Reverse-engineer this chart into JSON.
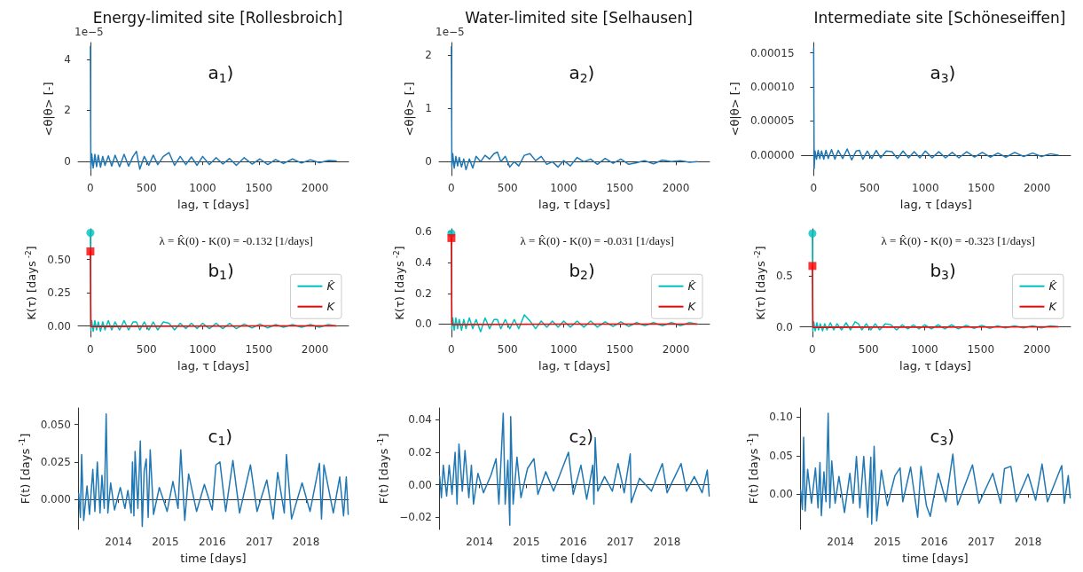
{
  "chart_data": [
    {
      "type": "line",
      "title": "Energy-limited site [Rollesbroich]",
      "xlabel": "lag, τ [days]",
      "ylabel": "<θ|θ> [-]",
      "annotations": [
        "a$_{1}$)",
        "1e−5"
      ],
      "marker": "none",
      "x": [
        0,
        4,
        12,
        25,
        40,
        55,
        70,
        90,
        110,
        130,
        160,
        190,
        220,
        260,
        300,
        340,
        380,
        410,
        440,
        480,
        520,
        560,
        600,
        650,
        700,
        750,
        800,
        850,
        900,
        950,
        1000,
        1060,
        1120,
        1180,
        1240,
        1300,
        1370,
        1440,
        1510,
        1580,
        1650,
        1720,
        1800,
        1880,
        1960,
        2040,
        2120,
        2190
      ],
      "series": [
        {
          "color": "#1f77b4",
          "values": [
            4.5,
            -0.3,
            0.3,
            -0.25,
            0.28,
            -0.2,
            0.25,
            -0.22,
            0.2,
            -0.15,
            0.22,
            -0.18,
            0.25,
            -0.2,
            0.28,
            -0.18,
            0.2,
            0.4,
            -0.3,
            0.2,
            -0.15,
            0.25,
            -0.12,
            0.2,
            0.35,
            -0.15,
            0.2,
            -0.12,
            0.18,
            -0.15,
            0.2,
            -0.12,
            0.15,
            -0.1,
            0.12,
            -0.15,
            0.15,
            -0.1,
            0.1,
            -0.12,
            0.08,
            -0.08,
            0.1,
            -0.06,
            0.07,
            -0.05,
            0.04,
            0.02
          ]
        }
      ],
      "xlim": [
        -110,
        2300
      ],
      "xticks": [
        0,
        500,
        1000,
        1500,
        2000
      ],
      "ylim": [
        -0.55,
        4.65
      ],
      "yticks": [
        0,
        2,
        4
      ]
    },
    {
      "type": "line",
      "title": "Water-limited site [Selhausen]",
      "xlabel": "lag, τ [days]",
      "ylabel": "<θ|θ> [-]",
      "annotations": [
        "a$_{2}$)",
        "1e−5"
      ],
      "marker": "none",
      "x": [
        0,
        4,
        12,
        25,
        40,
        55,
        70,
        90,
        110,
        130,
        160,
        190,
        220,
        260,
        300,
        340,
        380,
        410,
        440,
        480,
        520,
        560,
        600,
        650,
        700,
        750,
        800,
        850,
        900,
        950,
        1000,
        1060,
        1120,
        1180,
        1240,
        1300,
        1370,
        1440,
        1510,
        1580,
        1650,
        1720,
        1800,
        1880,
        1960,
        2040,
        2120,
        2190
      ],
      "series": [
        {
          "color": "#1f77b4",
          "values": [
            2.15,
            -0.1,
            0.15,
            -0.12,
            0.1,
            -0.08,
            0.08,
            -0.1,
            0.05,
            -0.15,
            0.05,
            -0.12,
            0.1,
            0.0,
            0.12,
            0.05,
            0.15,
            0.18,
            0.0,
            0.1,
            -0.1,
            0.0,
            -0.08,
            0.12,
            0.15,
            0.02,
            0.1,
            -0.05,
            0.0,
            -0.1,
            0.02,
            -0.08,
            0.08,
            0.0,
            0.05,
            -0.05,
            0.06,
            -0.03,
            0.05,
            -0.05,
            -0.02,
            0.02,
            -0.04,
            0.03,
            0.0,
            0.02,
            -0.01,
            0.0
          ]
        }
      ],
      "xlim": [
        -110,
        2300
      ],
      "xticks": [
        0,
        500,
        1000,
        1500,
        2000
      ],
      "ylim": [
        -0.26,
        2.23
      ],
      "yticks": [
        0,
        1,
        2
      ]
    },
    {
      "type": "line",
      "title": "Intermediate site [Schöneseiffen]",
      "xlabel": "lag, τ [days]",
      "ylabel": "<θ|θ> [-]",
      "annotations": [
        "a$_{3}$)"
      ],
      "marker": "none",
      "x": [
        0,
        4,
        12,
        25,
        40,
        55,
        70,
        90,
        110,
        130,
        160,
        190,
        220,
        260,
        300,
        340,
        380,
        410,
        440,
        480,
        520,
        560,
        600,
        650,
        700,
        750,
        800,
        850,
        900,
        950,
        1000,
        1060,
        1120,
        1180,
        1240,
        1300,
        1370,
        1440,
        1510,
        1580,
        1650,
        1720,
        1800,
        1880,
        1960,
        2040,
        2120,
        2190
      ],
      "series": [
        {
          "color": "#1f77b4",
          "values": [
            0.000157,
            -2e-05,
            6e-06,
            -6e-06,
            7e-06,
            -5e-06,
            6e-06,
            -6e-06,
            7e-06,
            -5e-06,
            8e-06,
            -6e-06,
            7e-06,
            -5e-06,
            9e-06,
            -7e-06,
            6e-06,
            7e-06,
            -6e-06,
            6e-06,
            -5e-06,
            7e-06,
            -4e-06,
            6e-06,
            5e-06,
            -5e-06,
            6e-06,
            -4e-06,
            5e-06,
            -4e-06,
            6e-06,
            -4e-06,
            5e-06,
            -4e-06,
            4e-06,
            -4e-06,
            5e-06,
            -3e-06,
            4e-06,
            -3e-06,
            3e-06,
            -3e-06,
            4e-06,
            -2e-06,
            3e-06,
            -2e-06,
            2e-06,
            0.0
          ]
        }
      ],
      "xlim": [
        -110,
        2300
      ],
      "xticks": [
        0,
        500,
        1000,
        1500,
        2000
      ],
      "ylim": [
        -3e-05,
        0.000165
      ],
      "yticks": [
        {
          "value": 0,
          "label": "0.00000"
        },
        {
          "value": 5e-05,
          "label": "0.00005"
        },
        {
          "value": 0.0001,
          "label": "0.00010"
        },
        {
          "value": 0.00015,
          "label": "0.00015"
        }
      ]
    },
    {
      "type": "line",
      "xlabel": "lag, τ [days]",
      "ylabel": "K(τ) [days$^{-2}$]",
      "annotations": [
        "b$_{1}$)",
        "λ = K̂(0) - K(0) = -0.132 [1/days]"
      ],
      "marker": "none",
      "legend": "right",
      "x": [
        0,
        4,
        12,
        25,
        40,
        55,
        70,
        90,
        110,
        130,
        160,
        190,
        220,
        260,
        300,
        340,
        380,
        410,
        440,
        480,
        520,
        560,
        600,
        650,
        700,
        750,
        800,
        850,
        900,
        950,
        1000,
        1060,
        1120,
        1180,
        1240,
        1300,
        1370,
        1440,
        1510,
        1580,
        1650,
        1720,
        1800,
        1880,
        1960,
        2040,
        2120,
        2190
      ],
      "series": [
        {
          "name": "K̂",
          "color": "#00bfbf",
          "values": [
            0.7,
            -0.03,
            0.04,
            -0.04,
            0.04,
            -0.03,
            0.03,
            -0.04,
            0.03,
            -0.03,
            0.04,
            -0.03,
            0.03,
            -0.03,
            0.04,
            -0.03,
            0.03,
            0.03,
            -0.03,
            0.03,
            -0.03,
            0.03,
            -0.03,
            0.03,
            0.02,
            -0.03,
            0.02,
            -0.02,
            0.02,
            -0.02,
            0.02,
            -0.02,
            0.02,
            -0.02,
            0.02,
            -0.02,
            0.015,
            -0.015,
            0.015,
            -0.015,
            0.01,
            -0.01,
            0.01,
            -0.01,
            0.01,
            -0.01,
            0.01,
            0.0
          ]
        },
        {
          "name": "K",
          "color": "#ff0000",
          "x": [
            0,
            4,
            100,
            500,
            1000,
            1500,
            2190
          ],
          "values": [
            0.56,
            -0.005,
            -0.005,
            -0.003,
            -0.002,
            0,
            0
          ]
        },
        {
          "type": "scatter",
          "marker": "circle",
          "color": "#00bfbf",
          "x": [
            0
          ],
          "values": [
            0.7
          ]
        },
        {
          "type": "scatter",
          "marker": "square",
          "color": "#ff0000",
          "x": [
            0
          ],
          "values": [
            0.56
          ]
        }
      ],
      "xlim": [
        -110,
        2300
      ],
      "xticks": [
        0,
        500,
        1000,
        1500,
        2000
      ],
      "ylim": [
        -0.083,
        0.73
      ],
      "yticks": [
        {
          "value": 0,
          "label": "0.00"
        },
        {
          "value": 0.25,
          "label": "0.25"
        },
        {
          "value": 0.5,
          "label": "0.50"
        }
      ]
    },
    {
      "type": "line",
      "xlabel": "lag, τ [days]",
      "ylabel": "K(τ) [days$^{-2}$]",
      "annotations": [
        "b$_{2}$)",
        "λ = K̂(0) - K(0) = -0.031 [1/days]"
      ],
      "marker": "none",
      "legend": "right",
      "x": [
        0,
        4,
        12,
        25,
        40,
        55,
        70,
        90,
        110,
        130,
        160,
        190,
        220,
        260,
        300,
        340,
        380,
        410,
        440,
        480,
        520,
        560,
        600,
        650,
        700,
        750,
        800,
        850,
        900,
        950,
        1000,
        1060,
        1120,
        1180,
        1240,
        1300,
        1370,
        1440,
        1510,
        1580,
        1650,
        1720,
        1800,
        1880,
        1960,
        2040,
        2120,
        2190
      ],
      "series": [
        {
          "name": "K̂",
          "color": "#00bfbf",
          "values": [
            0.59,
            -0.03,
            0.04,
            -0.04,
            0.04,
            -0.03,
            0.03,
            -0.04,
            0.03,
            -0.03,
            0.04,
            -0.03,
            0.03,
            -0.05,
            0.04,
            -0.03,
            0.03,
            0.03,
            -0.03,
            0.03,
            -0.03,
            0.03,
            -0.03,
            0.06,
            0.02,
            -0.03,
            0.02,
            -0.02,
            0.02,
            -0.02,
            0.02,
            -0.02,
            0.02,
            -0.02,
            0.02,
            -0.02,
            0.015,
            -0.015,
            0.015,
            -0.015,
            0.01,
            -0.01,
            0.01,
            -0.01,
            0.01,
            -0.01,
            0.01,
            0.0
          ]
        },
        {
          "name": "K",
          "color": "#ff0000",
          "x": [
            0,
            4,
            100,
            500,
            1000,
            1500,
            2190
          ],
          "values": [
            0.56,
            -0.003,
            -0.003,
            -0.002,
            -0.001,
            0,
            0
          ]
        },
        {
          "type": "scatter",
          "marker": "circle",
          "color": "#00bfbf",
          "x": [
            0
          ],
          "values": [
            0.59
          ]
        },
        {
          "type": "scatter",
          "marker": "square",
          "color": "#ff0000",
          "x": [
            0
          ],
          "values": [
            0.56
          ]
        }
      ],
      "xlim": [
        -110,
        2300
      ],
      "xticks": [
        0,
        500,
        1000,
        1500,
        2000
      ],
      "ylim": [
        -0.084,
        0.62
      ],
      "yticks": [
        {
          "value": 0,
          "label": "0.0"
        },
        {
          "value": 0.2,
          "label": "0.2"
        },
        {
          "value": 0.4,
          "label": "0.4"
        },
        {
          "value": 0.6,
          "label": "0.6"
        }
      ]
    },
    {
      "type": "line",
      "xlabel": "lag, τ [days]",
      "ylabel": "K(τ) [days$^{-2}$]",
      "annotations": [
        "b$_{3}$)",
        "λ = K̂(0) - K(0) = -0.323 [1/days]"
      ],
      "marker": "none",
      "legend": "right",
      "x": [
        0,
        4,
        12,
        25,
        40,
        55,
        70,
        90,
        110,
        130,
        160,
        190,
        220,
        260,
        300,
        340,
        380,
        410,
        440,
        480,
        520,
        560,
        600,
        650,
        700,
        750,
        800,
        850,
        900,
        950,
        1000,
        1060,
        1120,
        1180,
        1240,
        1300,
        1370,
        1440,
        1510,
        1580,
        1650,
        1720,
        1800,
        1880,
        1960,
        2040,
        2120,
        2190
      ],
      "series": [
        {
          "name": "K̂",
          "color": "#00bfbf",
          "values": [
            0.92,
            -0.04,
            0.05,
            -0.04,
            0.04,
            -0.03,
            0.03,
            -0.04,
            0.03,
            -0.03,
            0.04,
            -0.03,
            0.03,
            -0.03,
            0.04,
            -0.03,
            0.05,
            0.03,
            -0.03,
            0.03,
            -0.03,
            0.03,
            -0.03,
            0.03,
            0.02,
            -0.03,
            0.02,
            -0.02,
            0.02,
            -0.02,
            0.02,
            -0.02,
            0.02,
            -0.02,
            0.02,
            -0.02,
            0.015,
            -0.015,
            0.015,
            -0.015,
            0.01,
            -0.01,
            0.01,
            -0.01,
            0.01,
            -0.01,
            0.01,
            0.0
          ]
        },
        {
          "name": "K",
          "color": "#ff0000",
          "x": [
            0,
            4,
            100,
            500,
            1000,
            1500,
            2190
          ],
          "values": [
            0.6,
            -0.005,
            -0.005,
            -0.004,
            -0.003,
            -0.001,
            0
          ]
        },
        {
          "type": "scatter",
          "marker": "circle",
          "color": "#00bfbf",
          "x": [
            0
          ],
          "values": [
            0.92
          ]
        },
        {
          "type": "scatter",
          "marker": "square",
          "color": "#ff0000",
          "x": [
            0
          ],
          "values": [
            0.6
          ]
        }
      ],
      "xlim": [
        -110,
        2300
      ],
      "xticks": [
        0,
        500,
        1000,
        1500,
        2000
      ],
      "ylim": [
        -0.1,
        0.966
      ],
      "yticks": [
        {
          "value": 0,
          "label": "0.0"
        },
        {
          "value": 0.5,
          "label": "0.5"
        }
      ]
    },
    {
      "type": "line",
      "xlabel": "time [days]",
      "ylabel": "F(t) [days$^{-1}$]",
      "annotations": [
        "c$_{1}$)"
      ],
      "marker": "none",
      "x": [
        "2013-02-25",
        "2013-03-10",
        "2013-03-20",
        "2013-04-05",
        "2013-05-01",
        "2013-05-20",
        "2013-06-15",
        "2013-07-01",
        "2013-07-20",
        "2013-08-10",
        "2013-08-25",
        "2013-09-12",
        "2013-09-27",
        "2013-10-10",
        "2013-11-01",
        "2013-12-01",
        "2014-01-15",
        "2014-02-20",
        "2014-03-15",
        "2014-04-10",
        "2014-04-20",
        "2014-05-01",
        "2014-05-10",
        "2014-06-01",
        "2014-06-20",
        "2014-07-05",
        "2014-07-20",
        "2014-08-05",
        "2014-08-20",
        "2014-09-05",
        "2014-10-01",
        "2014-11-15",
        "2015-01-15",
        "2015-03-01",
        "2015-04-10",
        "2015-05-01",
        "2015-06-01",
        "2015-07-01",
        "2015-09-01",
        "2015-11-01",
        "2016-01-01",
        "2016-01-30",
        "2016-03-01",
        "2016-04-15",
        "2016-06-10",
        "2016-08-01",
        "2016-10-25",
        "2016-12-15",
        "2017-03-01",
        "2017-04-20",
        "2017-05-25",
        "2017-07-15",
        "2017-08-01",
        "2017-09-10",
        "2017-12-01",
        "2018-02-01",
        "2018-04-15",
        "2018-05-01",
        "2018-05-20",
        "2018-08-01",
        "2018-09-20",
        "2018-10-20",
        "2018-11-10",
        "2018-11-25"
      ],
      "series": [
        {
          "color": "#1f77b4",
          "values": [
            0.004,
            -0.012,
            0.03,
            -0.014,
            0.009,
            -0.01,
            0.02,
            -0.008,
            0.025,
            -0.009,
            0.016,
            -0.006,
            0.057,
            -0.009,
            0.011,
            -0.007,
            0.008,
            -0.006,
            0.006,
            -0.009,
            0.025,
            -0.011,
            0.032,
            -0.006,
            0.039,
            -0.018,
            0.019,
            0.027,
            -0.012,
            0.033,
            -0.01,
            0.008,
            -0.008,
            0.012,
            -0.006,
            0.033,
            -0.014,
            0.017,
            -0.008,
            0.01,
            -0.007,
            0.023,
            0.025,
            -0.008,
            0.026,
            -0.009,
            0.023,
            -0.008,
            0.013,
            -0.013,
            0.018,
            -0.009,
            0.03,
            -0.013,
            0.011,
            -0.008,
            0.024,
            -0.013,
            0.023,
            -0.009,
            0.015,
            -0.011,
            0.015,
            -0.01
          ]
        }
      ],
      "xlim": [
        "2013-02-20",
        "2018-11-28"
      ],
      "xticks": [
        "2014",
        "2015",
        "2016",
        "2017",
        "2018"
      ],
      "ylim": [
        -0.02,
        0.061
      ],
      "yticks": [
        {
          "value": 0,
          "label": "0.000"
        },
        {
          "value": 0.025,
          "label": "0.025"
        },
        {
          "value": 0.05,
          "label": "0.050"
        }
      ]
    },
    {
      "type": "line",
      "xlabel": "time [days]",
      "ylabel": "F(t) [days$^{-1}$]",
      "annotations": [
        "c$_{2}$)"
      ],
      "marker": "none",
      "x": [
        "2013-02-25",
        "2013-03-10",
        "2013-03-25",
        "2013-04-20",
        "2013-05-10",
        "2013-06-01",
        "2013-06-25",
        "2013-07-10",
        "2013-07-25",
        "2013-08-20",
        "2013-09-10",
        "2013-10-10",
        "2013-10-30",
        "2013-11-15",
        "2013-12-20",
        "2014-02-01",
        "2014-04-01",
        "2014-05-10",
        "2014-06-01",
        "2014-07-05",
        "2014-07-20",
        "2014-08-10",
        "2014-08-25",
        "2014-09-01",
        "2014-09-20",
        "2014-10-20",
        "2014-11-20",
        "2015-01-10",
        "2015-03-01",
        "2015-04-01",
        "2015-06-01",
        "2015-08-01",
        "2015-11-25",
        "2016-01-01",
        "2016-03-01",
        "2016-04-15",
        "2016-06-01",
        "2016-06-10",
        "2016-06-20",
        "2016-07-10",
        "2016-09-01",
        "2016-11-01",
        "2016-12-15",
        "2017-02-01",
        "2017-03-20",
        "2017-03-28",
        "2017-06-01",
        "2017-09-01",
        "2017-11-25",
        "2018-01-01",
        "2018-04-20",
        "2018-06-01",
        "2018-08-01",
        "2018-10-01",
        "2018-11-10",
        "2018-11-25"
      ],
      "series": [
        {
          "color": "#1f77b4",
          "values": [
            0.005,
            -0.008,
            0.012,
            -0.007,
            0.012,
            -0.006,
            0.02,
            -0.012,
            0.025,
            -0.004,
            0.021,
            -0.008,
            0.012,
            -0.012,
            0.007,
            -0.005,
            0.006,
            0.016,
            -0.012,
            0.044,
            -0.012,
            0.015,
            -0.025,
            0.042,
            -0.012,
            0.017,
            -0.008,
            0.01,
            0.016,
            -0.006,
            0.008,
            -0.004,
            0.02,
            -0.006,
            0.012,
            -0.009,
            0.012,
            -0.012,
            0.029,
            -0.004,
            0.005,
            -0.004,
            0.013,
            -0.005,
            0.019,
            -0.011,
            0.004,
            -0.004,
            0.013,
            -0.005,
            0.013,
            -0.004,
            0.005,
            -0.005,
            0.009,
            -0.007
          ]
        }
      ],
      "xlim": [
        "2013-02-20",
        "2018-11-28"
      ],
      "xticks": [
        "2014",
        "2015",
        "2016",
        "2017",
        "2018"
      ],
      "ylim": [
        -0.0276,
        0.0473
      ],
      "yticks": [
        {
          "value": -0.02,
          "label": "−0.02"
        },
        {
          "value": 0,
          "label": "0.00"
        },
        {
          "value": 0.02,
          "label": "0.02"
        },
        {
          "value": 0.04,
          "label": "0.04"
        }
      ]
    },
    {
      "type": "line",
      "xlabel": "time [days]",
      "ylabel": "F(t) [days$^{-1}$]",
      "annotations": [
        "c$_{3}$)"
      ],
      "marker": "none",
      "x": [
        "2013-02-25",
        "2013-03-10",
        "2013-03-20",
        "2013-04-01",
        "2013-04-20",
        "2013-05-20",
        "2013-06-20",
        "2013-07-10",
        "2013-07-25",
        "2013-08-05",
        "2013-08-25",
        "2013-09-10",
        "2013-09-27",
        "2013-10-10",
        "2013-10-25",
        "2013-11-20",
        "2013-12-20",
        "2014-02-01",
        "2014-03-15",
        "2014-04-10",
        "2014-05-05",
        "2014-06-01",
        "2014-07-01",
        "2014-08-01",
        "2014-08-25",
        "2014-09-01",
        "2014-09-20",
        "2014-10-10",
        "2014-11-15",
        "2015-01-01",
        "2015-03-01",
        "2015-04-10",
        "2015-05-01",
        "2015-07-01",
        "2015-08-25",
        "2015-09-20",
        "2015-11-01",
        "2015-12-01",
        "2016-02-01",
        "2016-04-01",
        "2016-05-25",
        "2016-07-01",
        "2016-10-25",
        "2016-12-15",
        "2017-04-01",
        "2017-06-01",
        "2017-07-01",
        "2017-08-20",
        "2017-10-01",
        "2018-01-01",
        "2018-03-01",
        "2018-04-20",
        "2018-06-01",
        "2018-09-20",
        "2018-10-10",
        "2018-11-10",
        "2018-11-25"
      ],
      "series": [
        {
          "color": "#1f77b4",
          "values": [
            0.005,
            -0.02,
            0.074,
            -0.022,
            0.032,
            -0.012,
            0.034,
            -0.018,
            0.041,
            -0.028,
            0.029,
            -0.01,
            0.105,
            -0.018,
            0.043,
            -0.012,
            0.023,
            -0.024,
            0.027,
            -0.012,
            0.049,
            -0.018,
            0.049,
            -0.03,
            0.048,
            -0.039,
            0.062,
            -0.035,
            0.031,
            -0.015,
            0.024,
            0.034,
            -0.01,
            0.035,
            -0.03,
            0.036,
            -0.015,
            -0.029,
            0.027,
            -0.01,
            0.052,
            -0.014,
            0.038,
            -0.012,
            0.027,
            -0.012,
            0.033,
            0.036,
            -0.01,
            0.026,
            -0.008,
            0.039,
            -0.01,
            0.037,
            -0.012,
            0.024,
            -0.005
          ]
        }
      ],
      "xlim": [
        "2013-02-20",
        "2018-11-28"
      ],
      "xticks": [
        "2014",
        "2015",
        "2016",
        "2017",
        "2018"
      ],
      "ylim": [
        -0.046,
        0.112
      ],
      "yticks": [
        {
          "value": 0,
          "label": "0.00"
        },
        {
          "value": 0.05,
          "label": "0.05"
        },
        {
          "value": 0.1,
          "label": "0.10"
        }
      ]
    }
  ]
}
